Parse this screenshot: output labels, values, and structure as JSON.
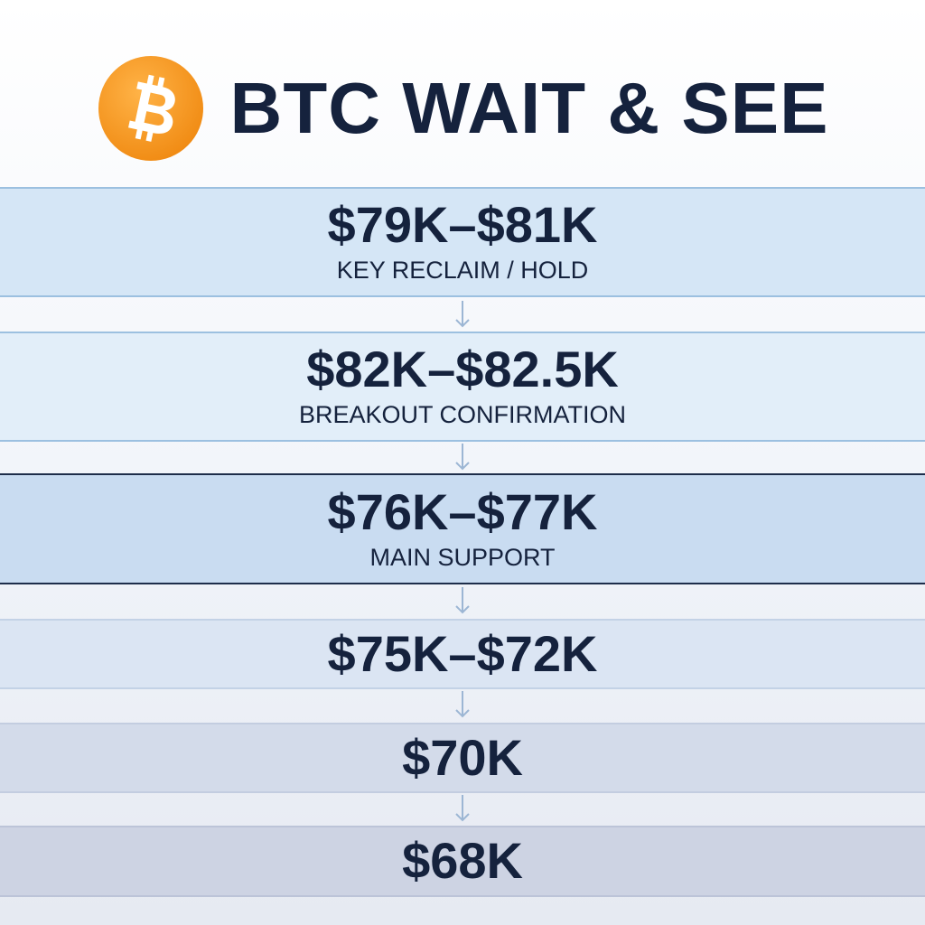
{
  "header": {
    "title": "BTC WAIT & SEE"
  },
  "levels": [
    {
      "range": "$79K–$81K",
      "label": "KEY RECLAIM / HOLD"
    },
    {
      "range": "$82K–$82.5K",
      "label": "BREAKOUT CONFIRMATION"
    },
    {
      "range": "$76K–$77K",
      "label": "MAIN SUPPORT"
    },
    {
      "range": "$75K–$72K"
    },
    {
      "range": "$70K"
    },
    {
      "range": "$68K"
    }
  ]
}
